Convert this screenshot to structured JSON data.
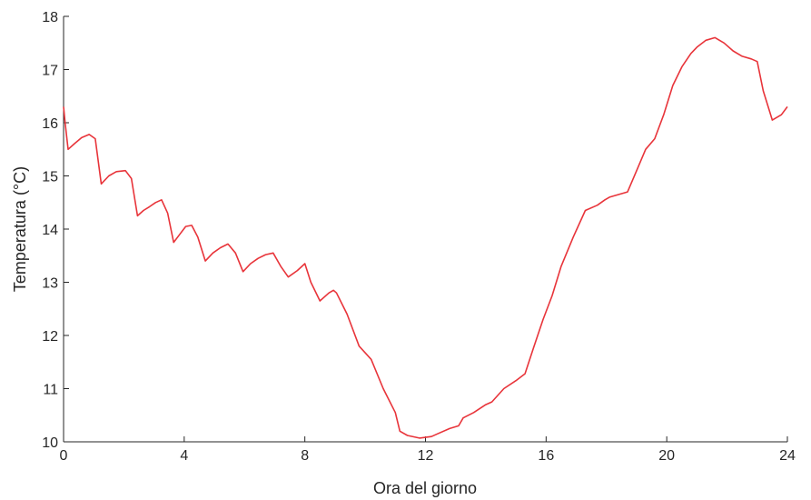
{
  "chart_data": {
    "type": "line",
    "title": "",
    "xlabel": "Ora del giorno",
    "ylabel": "Temperatura (°C)",
    "xlim": [
      0,
      24
    ],
    "ylim": [
      10,
      18
    ],
    "xticks": [
      0,
      4,
      8,
      12,
      16,
      20,
      24
    ],
    "yticks": [
      10,
      11,
      12,
      13,
      14,
      15,
      16,
      17,
      18
    ],
    "grid": false,
    "colors": {
      "line": "#e8343a",
      "axis": "#262626",
      "background": "#ffffff"
    },
    "series": [
      {
        "x": [
          0,
          0.05,
          0.15,
          0.35,
          0.6,
          0.85,
          1.05,
          1.25,
          1.5,
          1.75,
          2.05,
          2.25,
          2.45,
          2.65,
          2.85,
          3.05,
          3.25,
          3.45,
          3.65,
          3.85,
          4.05,
          4.25,
          4.45,
          4.7,
          4.95,
          5.2,
          5.45,
          5.7,
          5.95,
          6.2,
          6.45,
          6.7,
          6.95,
          7.2,
          7.45,
          7.75,
          8.0,
          8.2,
          8.5,
          8.8,
          8.95,
          9.05,
          9.4,
          9.8,
          10.2,
          10.6,
          11.0,
          11.15,
          11.4,
          11.8,
          12.2,
          12.4,
          12.8,
          13.1,
          13.25,
          13.6,
          14.0,
          14.2,
          14.6,
          15.0,
          15.3,
          15.6,
          15.9,
          16.2,
          16.5,
          16.9,
          17.3,
          17.7,
          17.95,
          18.1,
          18.4,
          18.7,
          19.0,
          19.3,
          19.6,
          19.9,
          20.2,
          20.5,
          20.8,
          21.0,
          21.3,
          21.6,
          21.9,
          22.2,
          22.5,
          22.8,
          23.0,
          23.2,
          23.5,
          23.8,
          24.0
        ],
        "y": [
          16.3,
          16.0,
          15.5,
          15.6,
          15.72,
          15.78,
          15.7,
          14.85,
          15.0,
          15.08,
          15.1,
          14.95,
          14.25,
          14.35,
          14.42,
          14.5,
          14.55,
          14.3,
          13.75,
          13.9,
          14.05,
          14.07,
          13.85,
          13.4,
          13.55,
          13.65,
          13.72,
          13.55,
          13.2,
          13.35,
          13.45,
          13.52,
          13.55,
          13.3,
          13.1,
          13.22,
          13.35,
          13.0,
          12.65,
          12.8,
          12.85,
          12.8,
          12.4,
          11.8,
          11.55,
          11.0,
          10.55,
          10.2,
          10.12,
          10.07,
          10.1,
          10.15,
          10.25,
          10.3,
          10.45,
          10.55,
          10.7,
          10.75,
          11.0,
          11.15,
          11.28,
          11.8,
          12.3,
          12.75,
          13.3,
          13.85,
          14.35,
          14.45,
          14.55,
          14.6,
          14.65,
          14.7,
          15.1,
          15.5,
          15.7,
          16.15,
          16.7,
          17.05,
          17.3,
          17.42,
          17.55,
          17.6,
          17.5,
          17.35,
          17.25,
          17.2,
          17.15,
          16.6,
          16.05,
          16.15,
          16.3
        ]
      }
    ]
  }
}
